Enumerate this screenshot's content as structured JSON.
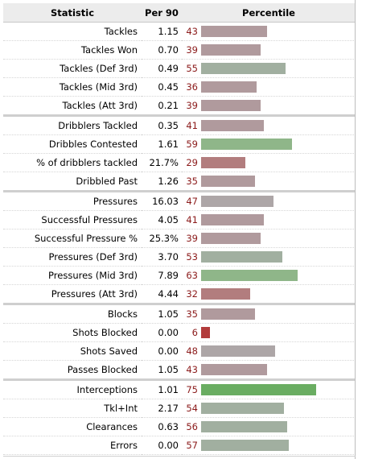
{
  "table": {
    "headers": [
      "Statistic",
      "Per 90",
      "Percentile"
    ],
    "groups": [
      [
        {
          "stat": "Tackles",
          "per90": "1.15",
          "pct": 43,
          "color": "#b09a9d"
        },
        {
          "stat": "Tackles Won",
          "per90": "0.70",
          "pct": 39,
          "color": "#b09a9d"
        },
        {
          "stat": "Tackles (Def 3rd)",
          "per90": "0.49",
          "pct": 55,
          "color": "#a1afa0"
        },
        {
          "stat": "Tackles (Mid 3rd)",
          "per90": "0.45",
          "pct": 36,
          "color": "#b09a9d"
        },
        {
          "stat": "Tackles (Att 3rd)",
          "per90": "0.21",
          "pct": 39,
          "color": "#b09a9d"
        }
      ],
      [
        {
          "stat": "Dribblers Tackled",
          "per90": "0.35",
          "pct": 41,
          "color": "#b09a9d"
        },
        {
          "stat": "Dribbles Contested",
          "per90": "1.61",
          "pct": 59,
          "color": "#8fb689"
        },
        {
          "stat": "% of dribblers tackled",
          "per90": "21.7%",
          "pct": 29,
          "color": "#b27d7e"
        },
        {
          "stat": "Dribbled Past",
          "per90": "1.26",
          "pct": 35,
          "color": "#b09a9d"
        }
      ],
      [
        {
          "stat": "Pressures",
          "per90": "16.03",
          "pct": 47,
          "color": "#ada6a7"
        },
        {
          "stat": "Successful Pressures",
          "per90": "4.05",
          "pct": 41,
          "color": "#b09a9d"
        },
        {
          "stat": "Successful Pressure %",
          "per90": "25.3%",
          "pct": 39,
          "color": "#b09a9d"
        },
        {
          "stat": "Pressures (Def 3rd)",
          "per90": "3.70",
          "pct": 53,
          "color": "#a1afa0"
        },
        {
          "stat": "Pressures (Mid 3rd)",
          "per90": "7.89",
          "pct": 63,
          "color": "#8fb689"
        },
        {
          "stat": "Pressures (Att 3rd)",
          "per90": "4.44",
          "pct": 32,
          "color": "#b27d7e"
        }
      ],
      [
        {
          "stat": "Blocks",
          "per90": "1.05",
          "pct": 35,
          "color": "#b09a9d"
        },
        {
          "stat": "Shots Blocked",
          "per90": "0.00",
          "pct": 6,
          "color": "#b23b3b"
        },
        {
          "stat": "Shots Saved",
          "per90": "0.00",
          "pct": 48,
          "color": "#ada6a7"
        },
        {
          "stat": "Passes Blocked",
          "per90": "1.05",
          "pct": 43,
          "color": "#b09a9d"
        }
      ],
      [
        {
          "stat": "Interceptions",
          "per90": "1.01",
          "pct": 75,
          "color": "#6aad62"
        },
        {
          "stat": "Tkl+Int",
          "per90": "2.17",
          "pct": 54,
          "color": "#a1afa0"
        },
        {
          "stat": "Clearances",
          "per90": "0.63",
          "pct": 56,
          "color": "#a1afa0"
        },
        {
          "stat": "Errors",
          "per90": "0.00",
          "pct": 57,
          "color": "#a1afa0"
        }
      ]
    ]
  }
}
